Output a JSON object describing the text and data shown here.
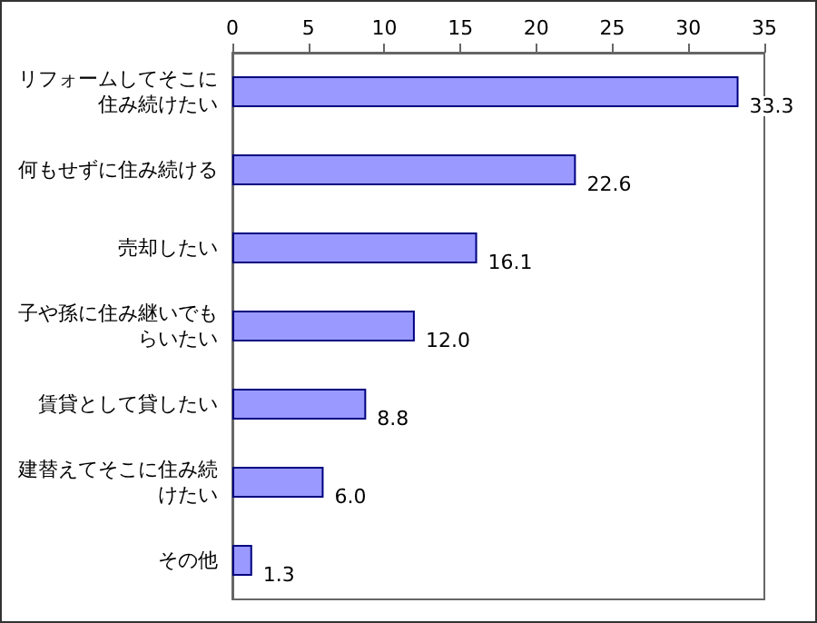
{
  "chart_data": {
    "type": "bar",
    "orientation": "horizontal",
    "categories": [
      "リフォームしてそこに住み続けたい",
      "何もせずに住み続ける",
      "売却したい",
      "子や孫に住み継いでもらいたい",
      "賃貸として貸したい",
      "建替えてそこに住み続けたい",
      "その他"
    ],
    "values": [
      33.3,
      22.6,
      16.1,
      12.0,
      8.8,
      6.0,
      1.3
    ],
    "value_labels": [
      "33.3",
      "22.6",
      "16.1",
      "12.0",
      "8.8",
      "6.0",
      "1.3"
    ],
    "color": "#9999ff",
    "xlim": [
      0,
      35
    ],
    "xticks": [
      0,
      5,
      10,
      15,
      20,
      25,
      30,
      35
    ],
    "grid": false
  }
}
